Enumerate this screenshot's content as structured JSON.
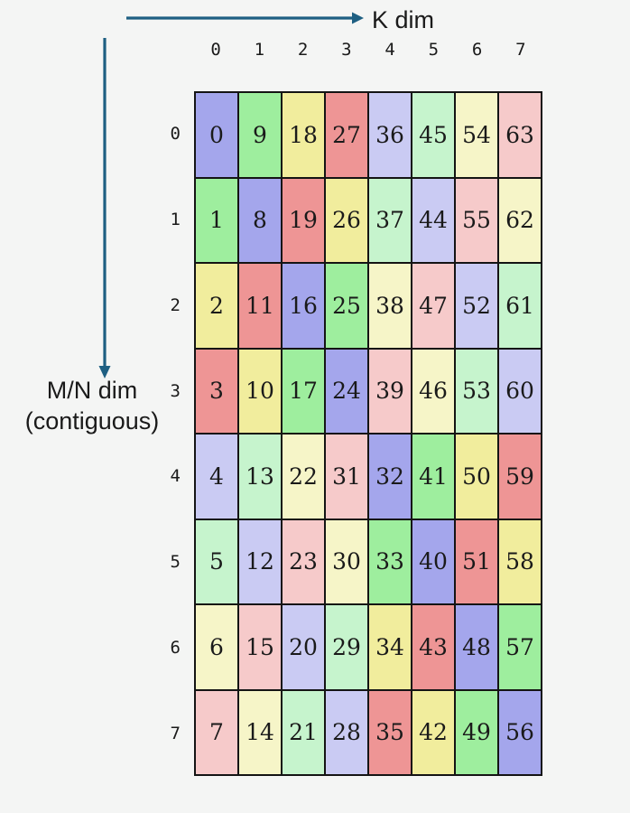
{
  "labels": {
    "k_dim": "K dim",
    "mn_dim_line1": "M/N dim",
    "mn_dim_line2": "(contiguous)"
  },
  "colors": {
    "background": "#f4f5f4",
    "arrow": "#1e5f82",
    "grid_border": "#141414",
    "text": "#1a1a1a",
    "palette": [
      "#a4a6ec",
      "#9eee9e",
      "#f1ed9d",
      "#ee9595",
      "#cacbf3",
      "#c6f4cd",
      "#f6f5c8",
      "#f6caca"
    ]
  },
  "grid": {
    "col_headers": [
      "0",
      "1",
      "2",
      "3",
      "4",
      "5",
      "6",
      "7"
    ],
    "row_headers": [
      "0",
      "1",
      "2",
      "3",
      "4",
      "5",
      "6",
      "7"
    ],
    "rows": [
      [
        0,
        9,
        18,
        27,
        36,
        45,
        54,
        63
      ],
      [
        1,
        8,
        19,
        26,
        37,
        44,
        55,
        62
      ],
      [
        2,
        11,
        16,
        25,
        38,
        47,
        52,
        61
      ],
      [
        3,
        10,
        17,
        24,
        39,
        46,
        53,
        60
      ],
      [
        4,
        13,
        22,
        31,
        32,
        41,
        50,
        59
      ],
      [
        5,
        12,
        23,
        30,
        33,
        40,
        51,
        58
      ],
      [
        6,
        15,
        20,
        29,
        34,
        43,
        48,
        57
      ],
      [
        7,
        14,
        21,
        28,
        35,
        42,
        49,
        56
      ]
    ]
  }
}
